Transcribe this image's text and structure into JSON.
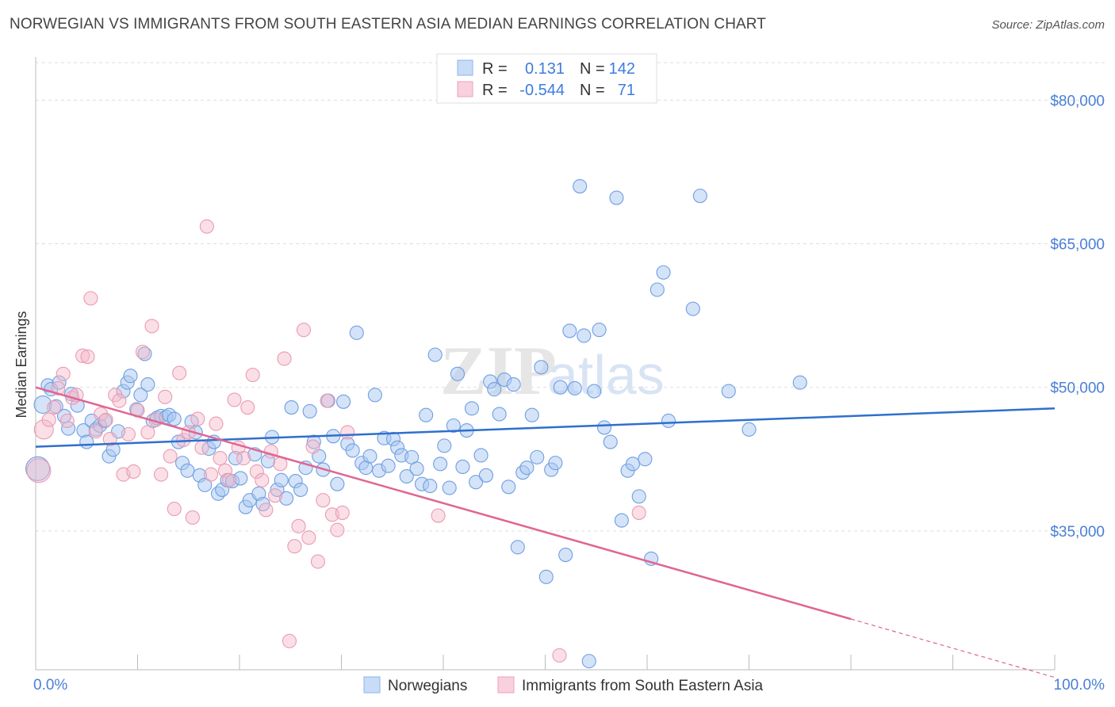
{
  "title": "NORWEGIAN VS IMMIGRANTS FROM SOUTH EASTERN ASIA MEDIAN EARNINGS CORRELATION CHART",
  "source": "Source: ZipAtlas.com",
  "legend": {
    "r_label": "R =",
    "n_label": "N =",
    "series": [
      {
        "r": "0.131",
        "n": "142"
      },
      {
        "r": "-0.544",
        "n": "71"
      }
    ]
  },
  "chart_data": {
    "type": "scatter",
    "xlabel": "",
    "ylabel": "Median Earnings",
    "xlim": [
      0,
      100
    ],
    "ylim": [
      20500,
      84500
    ],
    "x_ticks": [
      "0.0%",
      "100.0%"
    ],
    "y_ticks": [
      {
        "value": 35000,
        "label": "$35,000"
      },
      {
        "value": 50000,
        "label": "$50,000"
      },
      {
        "value": 65000,
        "label": "$65,000"
      },
      {
        "value": 80000,
        "label": "$80,000"
      }
    ],
    "grid": true,
    "watermark": "ZIPatlas",
    "colors": {
      "blue": "#a9c8f2",
      "blue_line": "#2f6fce",
      "pink": "#f4b8c9",
      "pink_line": "#e06592"
    },
    "series": [
      {
        "name": "Norwegians",
        "color": "#a9c8f2",
        "trend": {
          "x0": 0,
          "y0": 43800,
          "x1": 100,
          "y1": 47800
        },
        "points": [
          [
            0.2,
            41500
          ],
          [
            0.7,
            48200
          ],
          [
            1.2,
            50200
          ],
          [
            1.5,
            49800
          ],
          [
            2.0,
            48000
          ],
          [
            2.3,
            50500
          ],
          [
            2.8,
            47000
          ],
          [
            3.2,
            45700
          ],
          [
            3.5,
            49300
          ],
          [
            4.1,
            48100
          ],
          [
            4.7,
            45500
          ],
          [
            5.0,
            44300
          ],
          [
            5.5,
            46500
          ],
          [
            5.9,
            45600
          ],
          [
            6.3,
            46000
          ],
          [
            6.8,
            46500
          ],
          [
            7.2,
            42800
          ],
          [
            7.6,
            43500
          ],
          [
            8.1,
            45400
          ],
          [
            8.6,
            49600
          ],
          [
            9.0,
            50500
          ],
          [
            9.3,
            51200
          ],
          [
            9.9,
            47700
          ],
          [
            10.3,
            49200
          ],
          [
            10.7,
            53500
          ],
          [
            11.0,
            50300
          ],
          [
            11.5,
            46500
          ],
          [
            11.9,
            46800
          ],
          [
            12.3,
            47000
          ],
          [
            12.8,
            46900
          ],
          [
            13.1,
            47100
          ],
          [
            13.6,
            46700
          ],
          [
            14.0,
            44300
          ],
          [
            14.4,
            42100
          ],
          [
            14.9,
            41300
          ],
          [
            15.3,
            46400
          ],
          [
            15.7,
            45300
          ],
          [
            16.1,
            40800
          ],
          [
            16.6,
            39800
          ],
          [
            17.0,
            43600
          ],
          [
            17.5,
            44300
          ],
          [
            17.9,
            38900
          ],
          [
            18.3,
            39300
          ],
          [
            18.8,
            40300
          ],
          [
            19.3,
            40200
          ],
          [
            19.6,
            42600
          ],
          [
            20.1,
            40500
          ],
          [
            20.6,
            37500
          ],
          [
            21.0,
            38200
          ],
          [
            21.5,
            43000
          ],
          [
            21.9,
            38900
          ],
          [
            22.3,
            37800
          ],
          [
            22.8,
            42300
          ],
          [
            23.2,
            44800
          ],
          [
            23.7,
            39300
          ],
          [
            24.1,
            40300
          ],
          [
            24.6,
            38400
          ],
          [
            25.1,
            47900
          ],
          [
            25.5,
            40200
          ],
          [
            26.0,
            39300
          ],
          [
            26.5,
            41600
          ],
          [
            26.9,
            47500
          ],
          [
            27.3,
            44300
          ],
          [
            27.8,
            42800
          ],
          [
            28.2,
            41400
          ],
          [
            28.7,
            48600
          ],
          [
            29.2,
            44900
          ],
          [
            29.6,
            39900
          ],
          [
            30.2,
            48500
          ],
          [
            30.6,
            44100
          ],
          [
            31.1,
            43400
          ],
          [
            31.5,
            55700
          ],
          [
            32.0,
            42100
          ],
          [
            32.4,
            41600
          ],
          [
            32.8,
            42800
          ],
          [
            33.3,
            49200
          ],
          [
            33.7,
            41300
          ],
          [
            34.2,
            44700
          ],
          [
            34.6,
            41800
          ],
          [
            35.1,
            44600
          ],
          [
            35.5,
            43700
          ],
          [
            35.9,
            42900
          ],
          [
            36.4,
            40700
          ],
          [
            36.9,
            42700
          ],
          [
            37.4,
            41500
          ],
          [
            37.9,
            39900
          ],
          [
            38.3,
            47100
          ],
          [
            38.7,
            39700
          ],
          [
            39.2,
            53400
          ],
          [
            39.7,
            42000
          ],
          [
            40.1,
            43900
          ],
          [
            40.6,
            39500
          ],
          [
            41.0,
            46000
          ],
          [
            41.4,
            51400
          ],
          [
            41.9,
            41700
          ],
          [
            42.3,
            45500
          ],
          [
            42.8,
            47800
          ],
          [
            43.2,
            40100
          ],
          [
            43.7,
            42900
          ],
          [
            44.2,
            40800
          ],
          [
            44.6,
            50600
          ],
          [
            45.0,
            49800
          ],
          [
            45.5,
            47200
          ],
          [
            46.0,
            50800
          ],
          [
            46.4,
            39600
          ],
          [
            46.9,
            50300
          ],
          [
            47.3,
            33300
          ],
          [
            47.8,
            41100
          ],
          [
            48.2,
            41600
          ],
          [
            48.7,
            47100
          ],
          [
            49.2,
            42700
          ],
          [
            49.6,
            52100
          ],
          [
            50.1,
            30200
          ],
          [
            50.6,
            41400
          ],
          [
            51.0,
            42100
          ],
          [
            51.5,
            50000
          ],
          [
            52.0,
            32500
          ],
          [
            52.4,
            55900
          ],
          [
            52.9,
            49900
          ],
          [
            53.4,
            71000
          ],
          [
            53.8,
            55400
          ],
          [
            54.3,
            21400
          ],
          [
            54.8,
            49600
          ],
          [
            55.3,
            56000
          ],
          [
            55.8,
            45800
          ],
          [
            56.4,
            44300
          ],
          [
            57.0,
            69800
          ],
          [
            57.5,
            36100
          ],
          [
            58.1,
            41300
          ],
          [
            58.6,
            42000
          ],
          [
            59.2,
            38600
          ],
          [
            59.8,
            42500
          ],
          [
            60.4,
            32100
          ],
          [
            61.0,
            60200
          ],
          [
            61.6,
            62000
          ],
          [
            62.1,
            46500
          ],
          [
            64.5,
            58200
          ],
          [
            65.2,
            70000
          ],
          [
            68.0,
            49600
          ],
          [
            70.0,
            45600
          ],
          [
            75.0,
            50500
          ]
        ]
      },
      {
        "name": "Immigrants from South Eastern Asia",
        "color": "#f4b8c9",
        "trend": {
          "x0": 0,
          "y0": 50000,
          "x1": 80,
          "y1": 25800,
          "dash_to": {
            "x": 100,
            "y": 19700
          }
        },
        "points": [
          [
            0.3,
            41300
          ],
          [
            0.8,
            45600
          ],
          [
            1.3,
            46600
          ],
          [
            1.8,
            47900
          ],
          [
            2.2,
            49900
          ],
          [
            2.7,
            51400
          ],
          [
            3.1,
            46500
          ],
          [
            3.6,
            48900
          ],
          [
            4.0,
            49200
          ],
          [
            4.6,
            53300
          ],
          [
            5.1,
            53200
          ],
          [
            5.4,
            59300
          ],
          [
            5.9,
            45400
          ],
          [
            6.4,
            47200
          ],
          [
            6.9,
            46600
          ],
          [
            7.3,
            44600
          ],
          [
            7.8,
            49200
          ],
          [
            8.2,
            48600
          ],
          [
            8.6,
            40900
          ],
          [
            9.1,
            45100
          ],
          [
            9.6,
            41200
          ],
          [
            10.0,
            47600
          ],
          [
            10.5,
            53700
          ],
          [
            11.0,
            45300
          ],
          [
            11.4,
            56400
          ],
          [
            11.8,
            46600
          ],
          [
            12.3,
            40900
          ],
          [
            12.7,
            49000
          ],
          [
            13.2,
            42800
          ],
          [
            13.6,
            37300
          ],
          [
            14.1,
            51500
          ],
          [
            14.5,
            44500
          ],
          [
            15.0,
            45300
          ],
          [
            15.4,
            36400
          ],
          [
            15.9,
            46700
          ],
          [
            16.3,
            43700
          ],
          [
            16.8,
            66800
          ],
          [
            17.2,
            40900
          ],
          [
            17.7,
            46200
          ],
          [
            18.1,
            42600
          ],
          [
            18.6,
            41300
          ],
          [
            19.0,
            40300
          ],
          [
            19.5,
            48700
          ],
          [
            19.9,
            43700
          ],
          [
            20.4,
            42600
          ],
          [
            20.8,
            47900
          ],
          [
            21.3,
            51300
          ],
          [
            21.7,
            41200
          ],
          [
            22.2,
            40300
          ],
          [
            22.6,
            37200
          ],
          [
            23.1,
            43300
          ],
          [
            23.5,
            38700
          ],
          [
            24.0,
            42000
          ],
          [
            24.4,
            53000
          ],
          [
            24.9,
            23500
          ],
          [
            25.4,
            33400
          ],
          [
            25.8,
            35500
          ],
          [
            26.3,
            56000
          ],
          [
            26.8,
            34300
          ],
          [
            27.2,
            43800
          ],
          [
            27.7,
            31800
          ],
          [
            28.2,
            38200
          ],
          [
            28.6,
            48600
          ],
          [
            29.1,
            36700
          ],
          [
            29.6,
            35100
          ],
          [
            30.1,
            36900
          ],
          [
            30.6,
            45300
          ],
          [
            39.5,
            36600
          ],
          [
            51.4,
            22000
          ],
          [
            59.2,
            36900
          ]
        ]
      }
    ]
  },
  "bottom_legend": [
    "Norwegians",
    "Immigrants from South Eastern Asia"
  ]
}
